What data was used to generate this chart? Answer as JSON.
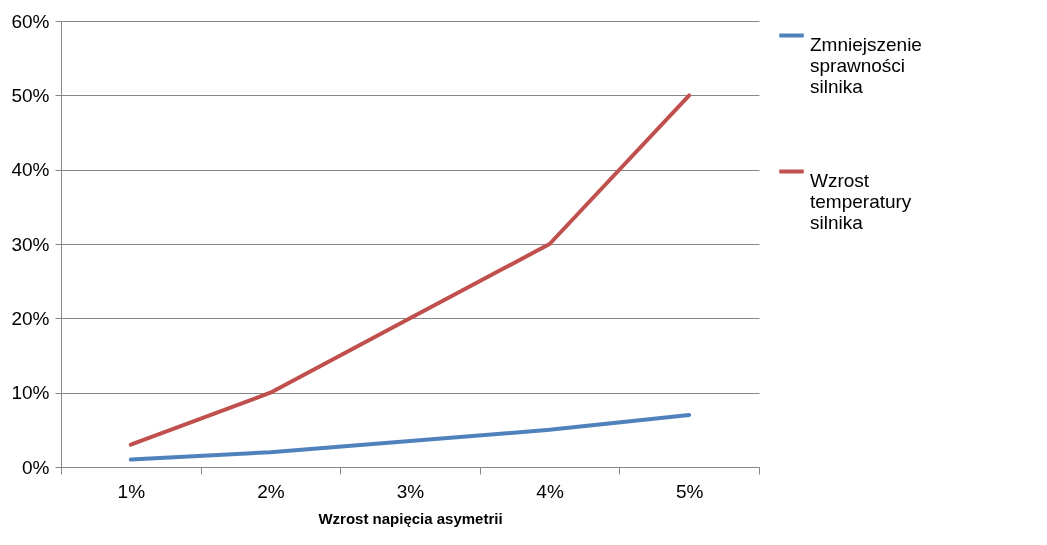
{
  "chart_data": {
    "type": "line",
    "xlabel": "Wzrost napięcia asymetrii",
    "categories": [
      "1%",
      "2%",
      "3%",
      "4%",
      "5%"
    ],
    "series": [
      {
        "name": "Zmniejszenie sprawności silnika",
        "color": "#4f81bd",
        "values": [
          1,
          2,
          3.5,
          5,
          7
        ]
      },
      {
        "name": "Wzrost temperatury silnika",
        "color": "#c0504d",
        "values": [
          3,
          10,
          20,
          30,
          50
        ]
      }
    ],
    "ylim": [
      0,
      60
    ],
    "yticks": [
      {
        "value": 0,
        "label": "0%"
      },
      {
        "value": 10,
        "label": "10%"
      },
      {
        "value": 20,
        "label": "20%"
      },
      {
        "value": 30,
        "label": "30%"
      },
      {
        "value": 40,
        "label": "40%"
      },
      {
        "value": 50,
        "label": "50%"
      },
      {
        "value": 60,
        "label": "60%"
      }
    ],
    "grid": "y",
    "legend": "right",
    "marker": "none",
    "line_style": "solid"
  }
}
